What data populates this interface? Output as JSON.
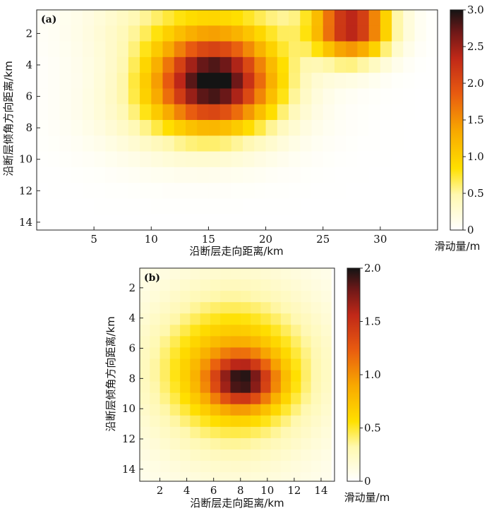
{
  "chart_data": [
    {
      "type": "heatmap",
      "panel_label": "(a)",
      "xlabel": "沿断层走向距离/km",
      "ylabel": "沿断层倾角方向距离/km",
      "x_ticks": [
        "5",
        "10",
        "15",
        "20",
        "25",
        "30"
      ],
      "y_ticks": [
        "2",
        "4",
        "6",
        "8",
        "10",
        "12",
        "14"
      ],
      "xlim": [
        0,
        35
      ],
      "ylim": [
        0.5,
        14.5
      ],
      "colorbar": {
        "label": "滑动量/m",
        "min": 0,
        "max": 3.0,
        "ticks": [
          "0",
          "0.5",
          "1.0",
          "1.5",
          "2.0",
          "2.5",
          "3.0"
        ]
      },
      "grid": {
        "cols": 35,
        "rows": 14,
        "cell_size_km": 1.0
      },
      "slip_sources": [
        {
          "x_km": 15.5,
          "y_km": 5.0,
          "sx": 5.0,
          "sy": 2.6,
          "peak": 2.6
        },
        {
          "x_km": 27.5,
          "y_km": 1.5,
          "sx": 3.2,
          "sy": 2.0,
          "peak": 2.4
        },
        {
          "x_km": 15.0,
          "y_km": 1.5,
          "sx": 9.0,
          "sy": 3.0,
          "peak": 0.7
        },
        {
          "x_km": 14.0,
          "y_km": 7.0,
          "sx": 8.0,
          "sy": 3.0,
          "peak": 0.6
        }
      ]
    },
    {
      "type": "heatmap",
      "panel_label": "(b)",
      "xlabel": "沿断层走向距离/km",
      "ylabel": "沿断层倾角方向距离/km",
      "x_ticks": [
        "2",
        "4",
        "6",
        "8",
        "10",
        "12",
        "14"
      ],
      "y_ticks": [
        "2",
        "4",
        "6",
        "8",
        "10",
        "12",
        "14"
      ],
      "xlim": [
        0.5,
        15
      ],
      "ylim": [
        0.7,
        14.8
      ],
      "colorbar": {
        "label": "滑动量/m",
        "min": 0,
        "max": 2.0,
        "ticks": [
          "0",
          "0.5",
          "1.0",
          "1.5",
          "2.0"
        ]
      },
      "grid": {
        "cols": 19,
        "rows": 19,
        "cell_size_km": 0.75
      },
      "slip_sources": [
        {
          "x_km": 8.2,
          "y_km": 8.2,
          "sx": 2.4,
          "sy": 1.6,
          "peak": 1.1
        },
        {
          "x_km": 7.5,
          "y_km": 7.5,
          "sx": 5.0,
          "sy": 4.0,
          "peak": 0.7
        },
        {
          "x_km": 7.5,
          "y_km": 7.5,
          "sx": 9.0,
          "sy": 9.0,
          "peak": 0.25
        }
      ]
    }
  ]
}
